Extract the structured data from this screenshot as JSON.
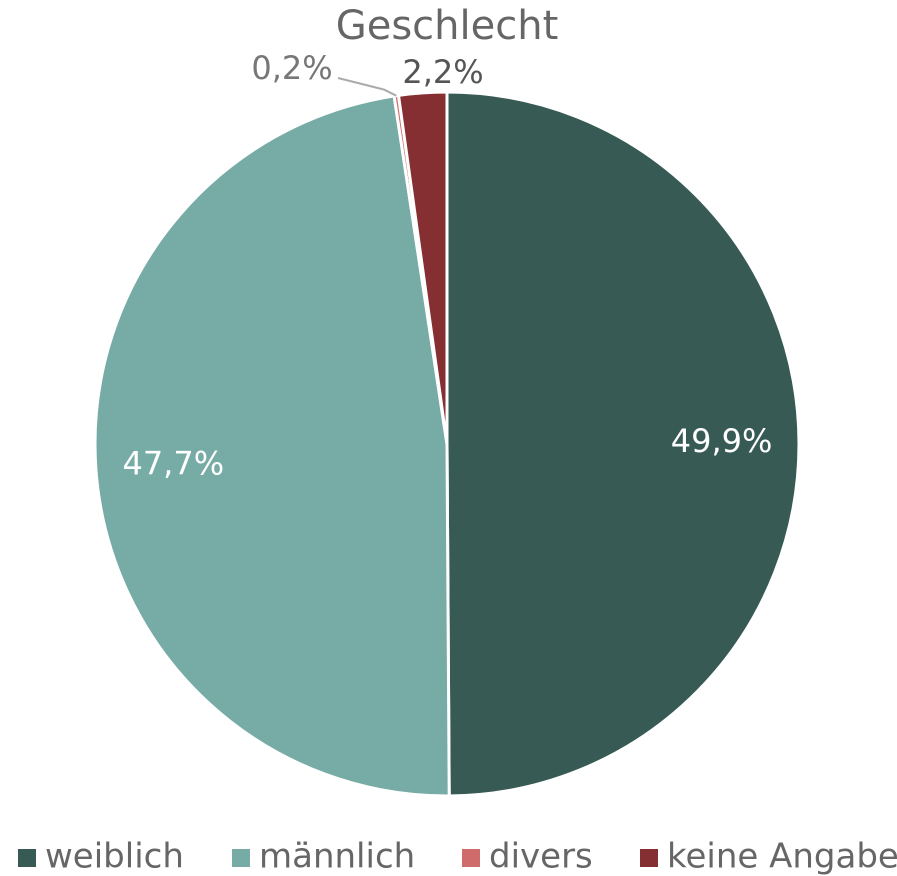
{
  "chart_data": {
    "type": "pie",
    "title": "Geschlecht",
    "categories": [
      "weiblich",
      "männlich",
      "divers",
      "keine Angabe"
    ],
    "values": [
      49.9,
      47.7,
      0.2,
      2.2
    ],
    "value_labels": [
      "49,9%",
      "47,7%",
      "0,2%",
      "2,2%"
    ],
    "colors": [
      "#375a55",
      "#77aca6",
      "#d06b6b",
      "#862f33"
    ],
    "legend": "bottom"
  }
}
